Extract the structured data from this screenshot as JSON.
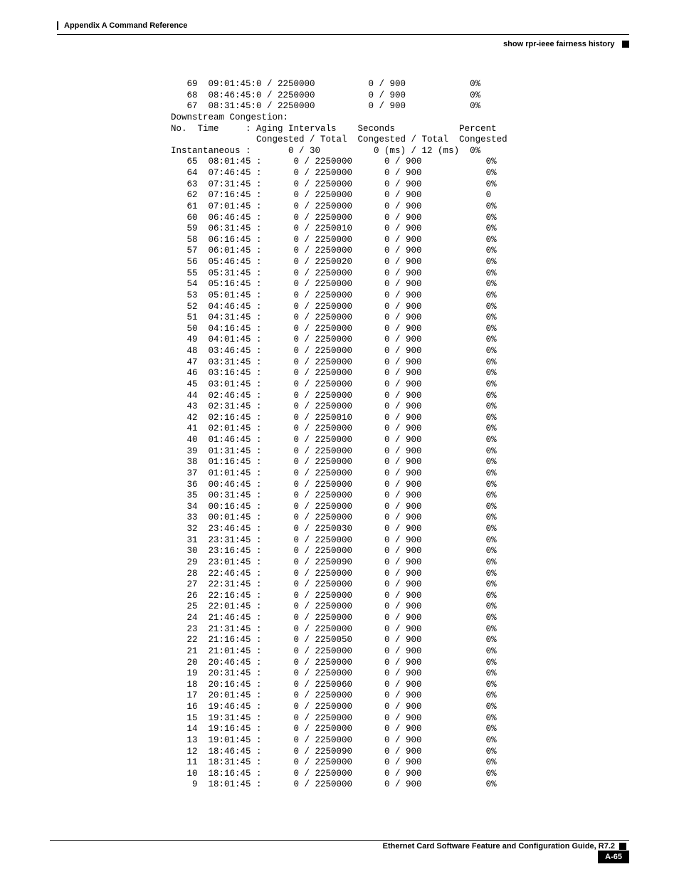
{
  "header": {
    "appendix": "Appendix A Command Reference",
    "section": "show rpr-ieee fairness history"
  },
  "terminal": {
    "font_family": "Courier New",
    "font_size_pt": 9,
    "color": "#000000",
    "pre_rows": [
      "   69  09:01:45:0 / 2250000          0 / 900            0%",
      "   68  08:46:45:0 / 2250000          0 / 900            0%",
      "   67  08:31:45:0 / 2250000          0 / 900            0%"
    ],
    "section_label": "Downstream Congestion:",
    "col_header_1": "No.  Time     : Aging Intervals    Seconds            Percent",
    "col_header_2": "                Congested / Total  Congested / Total  Congested",
    "instant_row": "Instantaneous :       0 / 30          0 (ms) / 12 (ms)  0%",
    "rows": [
      {
        "no": "65",
        "time": "08:01:45",
        "ai": "0 / 2250000",
        "sec": "0 / 900",
        "pct": "0%"
      },
      {
        "no": "64",
        "time": "07:46:45",
        "ai": "0 / 2250000",
        "sec": "0 / 900",
        "pct": "0%"
      },
      {
        "no": "63",
        "time": "07:31:45",
        "ai": "0 / 2250000",
        "sec": "0 / 900",
        "pct": "0%"
      },
      {
        "no": "62",
        "time": "07:16:45",
        "ai": "0 / 2250000",
        "sec": "0 / 900",
        "pct": "0"
      },
      {
        "no": "61",
        "time": "07:01:45",
        "ai": "0 / 2250000",
        "sec": "0 / 900",
        "pct": "0%"
      },
      {
        "no": "60",
        "time": "06:46:45",
        "ai": "0 / 2250000",
        "sec": "0 / 900",
        "pct": "0%"
      },
      {
        "no": "59",
        "time": "06:31:45",
        "ai": "0 / 2250010",
        "sec": "0 / 900",
        "pct": "0%"
      },
      {
        "no": "58",
        "time": "06:16:45",
        "ai": "0 / 2250000",
        "sec": "0 / 900",
        "pct": "0%"
      },
      {
        "no": "57",
        "time": "06:01:45",
        "ai": "0 / 2250000",
        "sec": "0 / 900",
        "pct": "0%"
      },
      {
        "no": "56",
        "time": "05:46:45",
        "ai": "0 / 2250020",
        "sec": "0 / 900",
        "pct": "0%"
      },
      {
        "no": "55",
        "time": "05:31:45",
        "ai": "0 / 2250000",
        "sec": "0 / 900",
        "pct": "0%"
      },
      {
        "no": "54",
        "time": "05:16:45",
        "ai": "0 / 2250000",
        "sec": "0 / 900",
        "pct": "0%"
      },
      {
        "no": "53",
        "time": "05:01:45",
        "ai": "0 / 2250000",
        "sec": "0 / 900",
        "pct": "0%"
      },
      {
        "no": "52",
        "time": "04:46:45",
        "ai": "0 / 2250000",
        "sec": "0 / 900",
        "pct": "0%"
      },
      {
        "no": "51",
        "time": "04:31:45",
        "ai": "0 / 2250000",
        "sec": "0 / 900",
        "pct": "0%"
      },
      {
        "no": "50",
        "time": "04:16:45",
        "ai": "0 / 2250000",
        "sec": "0 / 900",
        "pct": "0%"
      },
      {
        "no": "49",
        "time": "04:01:45",
        "ai": "0 / 2250000",
        "sec": "0 / 900",
        "pct": "0%"
      },
      {
        "no": "48",
        "time": "03:46:45",
        "ai": "0 / 2250000",
        "sec": "0 / 900",
        "pct": "0%"
      },
      {
        "no": "47",
        "time": "03:31:45",
        "ai": "0 / 2250000",
        "sec": "0 / 900",
        "pct": "0%"
      },
      {
        "no": "46",
        "time": "03:16:45",
        "ai": "0 / 2250000",
        "sec": "0 / 900",
        "pct": "0%"
      },
      {
        "no": "45",
        "time": "03:01:45",
        "ai": "0 / 2250000",
        "sec": "0 / 900",
        "pct": "0%"
      },
      {
        "no": "44",
        "time": "02:46:45",
        "ai": "0 / 2250000",
        "sec": "0 / 900",
        "pct": "0%"
      },
      {
        "no": "43",
        "time": "02:31:45",
        "ai": "0 / 2250000",
        "sec": "0 / 900",
        "pct": "0%"
      },
      {
        "no": "42",
        "time": "02:16:45",
        "ai": "0 / 2250010",
        "sec": "0 / 900",
        "pct": "0%"
      },
      {
        "no": "41",
        "time": "02:01:45",
        "ai": "0 / 2250000",
        "sec": "0 / 900",
        "pct": "0%"
      },
      {
        "no": "40",
        "time": "01:46:45",
        "ai": "0 / 2250000",
        "sec": "0 / 900",
        "pct": "0%"
      },
      {
        "no": "39",
        "time": "01:31:45",
        "ai": "0 / 2250000",
        "sec": "0 / 900",
        "pct": "0%"
      },
      {
        "no": "38",
        "time": "01:16:45",
        "ai": "0 / 2250000",
        "sec": "0 / 900",
        "pct": "0%"
      },
      {
        "no": "37",
        "time": "01:01:45",
        "ai": "0 / 2250000",
        "sec": "0 / 900",
        "pct": "0%"
      },
      {
        "no": "36",
        "time": "00:46:45",
        "ai": "0 / 2250000",
        "sec": "0 / 900",
        "pct": "0%"
      },
      {
        "no": "35",
        "time": "00:31:45",
        "ai": "0 / 2250000",
        "sec": "0 / 900",
        "pct": "0%"
      },
      {
        "no": "34",
        "time": "00:16:45",
        "ai": "0 / 2250000",
        "sec": "0 / 900",
        "pct": "0%"
      },
      {
        "no": "33",
        "time": "00:01:45",
        "ai": "0 / 2250000",
        "sec": "0 / 900",
        "pct": "0%"
      },
      {
        "no": "32",
        "time": "23:46:45",
        "ai": "0 / 2250030",
        "sec": "0 / 900",
        "pct": "0%"
      },
      {
        "no": "31",
        "time": "23:31:45",
        "ai": "0 / 2250000",
        "sec": "0 / 900",
        "pct": "0%"
      },
      {
        "no": "30",
        "time": "23:16:45",
        "ai": "0 / 2250000",
        "sec": "0 / 900",
        "pct": "0%"
      },
      {
        "no": "29",
        "time": "23:01:45",
        "ai": "0 / 2250090",
        "sec": "0 / 900",
        "pct": "0%"
      },
      {
        "no": "28",
        "time": "22:46:45",
        "ai": "0 / 2250000",
        "sec": "0 / 900",
        "pct": "0%"
      },
      {
        "no": "27",
        "time": "22:31:45",
        "ai": "0 / 2250000",
        "sec": "0 / 900",
        "pct": "0%"
      },
      {
        "no": "26",
        "time": "22:16:45",
        "ai": "0 / 2250000",
        "sec": "0 / 900",
        "pct": "0%"
      },
      {
        "no": "25",
        "time": "22:01:45",
        "ai": "0 / 2250000",
        "sec": "0 / 900",
        "pct": "0%"
      },
      {
        "no": "24",
        "time": "21:46:45",
        "ai": "0 / 2250000",
        "sec": "0 / 900",
        "pct": "0%"
      },
      {
        "no": "23",
        "time": "21:31:45",
        "ai": "0 / 2250000",
        "sec": "0 / 900",
        "pct": "0%"
      },
      {
        "no": "22",
        "time": "21:16:45",
        "ai": "0 / 2250050",
        "sec": "0 / 900",
        "pct": "0%"
      },
      {
        "no": "21",
        "time": "21:01:45",
        "ai": "0 / 2250000",
        "sec": "0 / 900",
        "pct": "0%"
      },
      {
        "no": "20",
        "time": "20:46:45",
        "ai": "0 / 2250000",
        "sec": "0 / 900",
        "pct": "0%"
      },
      {
        "no": "19",
        "time": "20:31:45",
        "ai": "0 / 2250000",
        "sec": "0 / 900",
        "pct": "0%"
      },
      {
        "no": "18",
        "time": "20:16:45",
        "ai": "0 / 2250060",
        "sec": "0 / 900",
        "pct": "0%"
      },
      {
        "no": "17",
        "time": "20:01:45",
        "ai": "0 / 2250000",
        "sec": "0 / 900",
        "pct": "0%"
      },
      {
        "no": "16",
        "time": "19:46:45",
        "ai": "0 / 2250000",
        "sec": "0 / 900",
        "pct": "0%"
      },
      {
        "no": "15",
        "time": "19:31:45",
        "ai": "0 / 2250000",
        "sec": "0 / 900",
        "pct": "0%"
      },
      {
        "no": "14",
        "time": "19:16:45",
        "ai": "0 / 2250000",
        "sec": "0 / 900",
        "pct": "0%"
      },
      {
        "no": "13",
        "time": "19:01:45",
        "ai": "0 / 2250000",
        "sec": "0 / 900",
        "pct": "0%"
      },
      {
        "no": "12",
        "time": "18:46:45",
        "ai": "0 / 2250090",
        "sec": "0 / 900",
        "pct": "0%"
      },
      {
        "no": "11",
        "time": "18:31:45",
        "ai": "0 / 2250000",
        "sec": "0 / 900",
        "pct": "0%"
      },
      {
        "no": "10",
        "time": "18:16:45",
        "ai": "0 / 2250000",
        "sec": "0 / 900",
        "pct": "0%"
      },
      {
        "no": " 9",
        "time": "18:01:45",
        "ai": "0 / 2250000",
        "sec": "0 / 900",
        "pct": "0%"
      }
    ]
  },
  "footer": {
    "guide": "Ethernet Card Software Feature and Configuration Guide, R7.2",
    "page": "A-65"
  }
}
